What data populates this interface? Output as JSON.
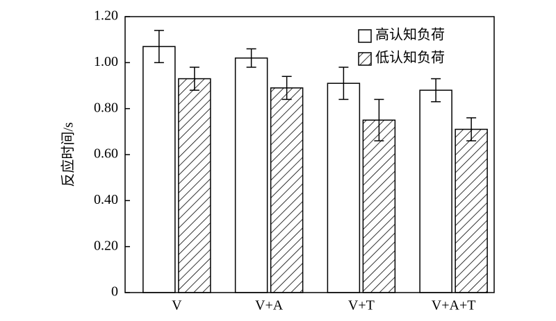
{
  "chart_data": {
    "type": "bar",
    "y_label": "反应时间/s",
    "categories": [
      "V",
      "V+A",
      "V+T",
      "V+A+T"
    ],
    "series": [
      {
        "name": "高认知负荷",
        "color": "#ffffff",
        "hatch": false,
        "values": [
          1.07,
          1.02,
          0.91,
          0.88
        ],
        "errors": [
          0.07,
          0.04,
          0.07,
          0.05
        ]
      },
      {
        "name": "低认知负荷",
        "color": "#ffffff",
        "hatch": true,
        "values": [
          0.93,
          0.89,
          0.75,
          0.71
        ],
        "errors": [
          0.05,
          0.05,
          0.09,
          0.05
        ]
      }
    ],
    "ylim": [
      0,
      1.2
    ],
    "yticks": [
      0,
      {
        "value": 0.2,
        "label": "0.20"
      },
      {
        "value": 0.4,
        "label": "0.40"
      },
      {
        "value": 0.6,
        "label": "0.60"
      },
      {
        "value": 0.8,
        "label": "0.80"
      },
      {
        "value": 1.0,
        "label": "1.00"
      },
      {
        "value": 1.2,
        "label": "1.20"
      }
    ],
    "legend": "upper right"
  }
}
